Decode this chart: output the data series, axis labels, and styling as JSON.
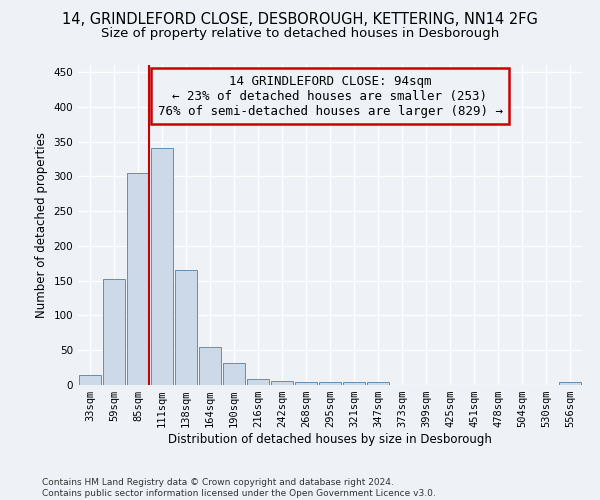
{
  "title_line1": "14, GRINDLEFORD CLOSE, DESBOROUGH, KETTERING, NN14 2FG",
  "title_line2": "Size of property relative to detached houses in Desborough",
  "xlabel": "Distribution of detached houses by size in Desborough",
  "ylabel": "Number of detached properties",
  "footnote": "Contains HM Land Registry data © Crown copyright and database right 2024.\nContains public sector information licensed under the Open Government Licence v3.0.",
  "bar_color": "#ccd9e8",
  "bar_edge_color": "#6090b8",
  "categories": [
    "33sqm",
    "59sqm",
    "85sqm",
    "111sqm",
    "138sqm",
    "164sqm",
    "190sqm",
    "216sqm",
    "242sqm",
    "268sqm",
    "295sqm",
    "321sqm",
    "347sqm",
    "373sqm",
    "399sqm",
    "425sqm",
    "451sqm",
    "478sqm",
    "504sqm",
    "530sqm",
    "556sqm"
  ],
  "values": [
    15,
    153,
    305,
    340,
    165,
    55,
    32,
    9,
    6,
    4,
    5,
    4,
    5,
    0,
    0,
    0,
    0,
    0,
    0,
    0,
    4
  ],
  "ylim": [
    0,
    460
  ],
  "yticks": [
    0,
    50,
    100,
    150,
    200,
    250,
    300,
    350,
    400,
    450
  ],
  "vline_color": "#cc0000",
  "vline_bin_index": 2,
  "annotation_text": "14 GRINDLEFORD CLOSE: 94sqm\n← 23% of detached houses are smaller (253)\n76% of semi-detached houses are larger (829) →",
  "annotation_box_color": "#cc0000",
  "bg_color": "#eef2f7",
  "grid_color": "#ffffff",
  "title_fontsize": 10.5,
  "subtitle_fontsize": 9.5,
  "axis_label_fontsize": 8.5,
  "tick_fontsize": 7.5,
  "annotation_fontsize": 9,
  "footnote_fontsize": 6.5
}
